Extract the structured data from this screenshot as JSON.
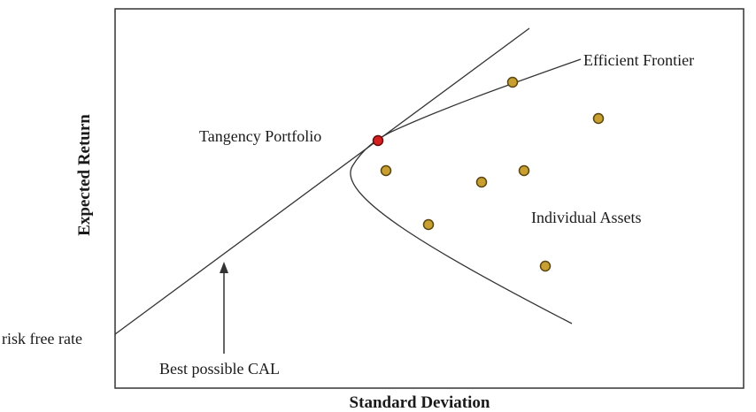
{
  "labels": {
    "efficient_frontier": "Efficient Frontier",
    "tangency_portfolio": "Tangency Portfolio",
    "individual_assets": "Individual Assets",
    "risk_free_rate": "risk free rate",
    "best_cal": "Best possible CAL"
  },
  "axes": {
    "x_title": "Standard Deviation",
    "y_title": "Expected Return"
  },
  "colors": {
    "asset_fill": "#c8a032",
    "asset_stroke": "#5a4410",
    "tangency_fill": "#d42020",
    "tangency_stroke": "#6a0a0a",
    "line": "#333333"
  }
}
